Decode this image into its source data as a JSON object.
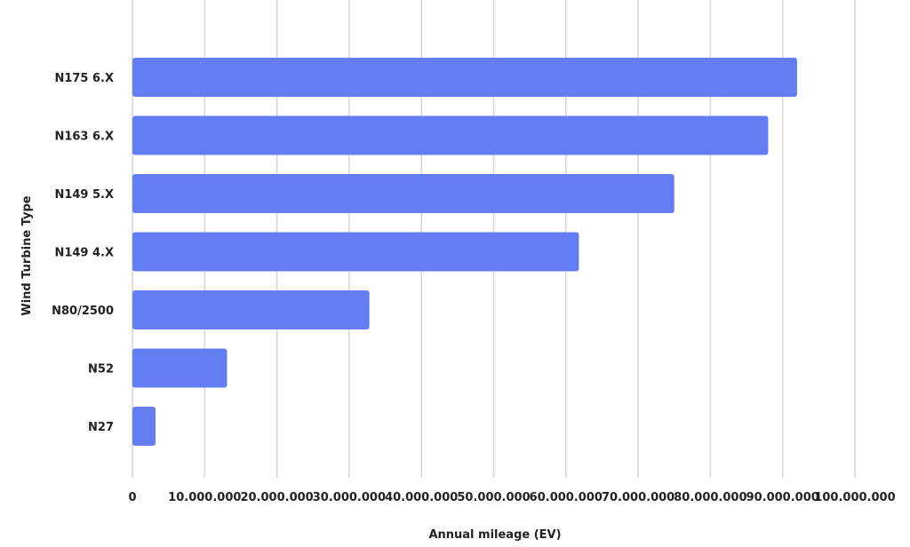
{
  "chart_data": {
    "type": "bar",
    "orientation": "horizontal",
    "categories": [
      "N175 6.X",
      "N163 6.X",
      "N149 5.X",
      "N149 4.X",
      "N80/2500",
      "N52",
      "N27"
    ],
    "values": [
      92000000,
      88000000,
      75000000,
      61800000,
      32800000,
      13100000,
      3200000
    ],
    "xlabel": "Annual mileage (EV)",
    "ylabel": "Wind Turbine Type",
    "xlim": [
      0,
      100000000
    ],
    "x_ticks": [
      0,
      10000000,
      20000000,
      30000000,
      40000000,
      50000000,
      60000000,
      70000000,
      80000000,
      90000000,
      100000000
    ],
    "x_tick_labels": [
      "0",
      "10.000.000",
      "20.000.000",
      "30.000.000",
      "40.000.000",
      "50.000.000",
      "60.000.000",
      "70.000.000",
      "80.000.000",
      "90.000.000",
      "100.000.000"
    ],
    "grid": "vertical",
    "legend": "none",
    "bar_color": "#637EF2",
    "grid_color": "#D6D6D6"
  }
}
